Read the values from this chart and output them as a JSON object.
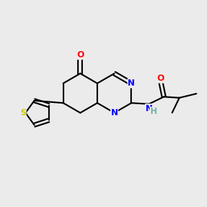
{
  "bg_color": "#ebebeb",
  "bond_color": "#000000",
  "bond_width": 1.6,
  "atom_colors": {
    "N": "#0000ff",
    "O": "#ff0000",
    "S": "#cccc00",
    "H": "#70b0b0",
    "C": "#000000"
  }
}
